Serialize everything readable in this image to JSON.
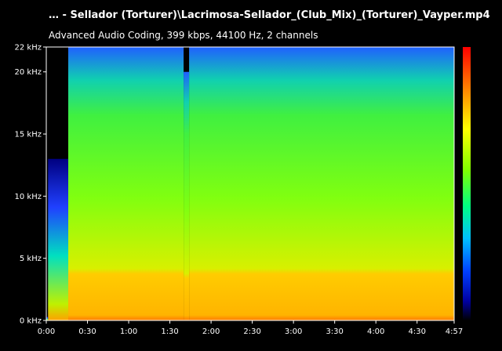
{
  "header": {
    "title": "… - Sellador (Torturer)\\Lacrimosa-Sellador_(Club_Mix)_(Torturer)_Vayper.mp4",
    "subtitle": "Advanced Audio Coding, 399 kbps, 44100 Hz, 2 channels"
  },
  "chart_data": {
    "type": "heatmap",
    "title": "… - Sellador (Torturer)\\Lacrimosa-Sellador_(Club_Mix)_(Torturer)_Vayper.mp4",
    "subtitle": "Advanced Audio Coding, 399 kbps, 44100 Hz, 2 channels",
    "xlabel": "",
    "ylabel": "",
    "x_ticks": [
      "0:00",
      "0:30",
      "1:00",
      "1:30",
      "2:00",
      "2:30",
      "3:00",
      "3:30",
      "4:00",
      "4:30",
      "4:57"
    ],
    "x_tick_seconds": [
      0,
      30,
      60,
      90,
      120,
      150,
      180,
      210,
      240,
      270,
      297
    ],
    "xlim": [
      0,
      297
    ],
    "y_ticks": [
      "0 kHz",
      "5 kHz",
      "10 kHz",
      "15 kHz",
      "20 kHz",
      "22 kHz"
    ],
    "y_tick_khz": [
      0,
      5,
      10,
      15,
      20,
      22
    ],
    "ylim": [
      0,
      22
    ],
    "colormap": [
      "#ff0000",
      "#ff8000",
      "#ffff00",
      "#80ff00",
      "#00ff80",
      "#00c0ff",
      "#0040ff",
      "#0000a0",
      "#000000"
    ],
    "segments": [
      {
        "start": 0,
        "end": 1.3,
        "cutoff_khz": 0.3
      },
      {
        "start": 1.3,
        "end": 16,
        "cutoff_khz": 13
      },
      {
        "start": 16,
        "end": 100,
        "cutoff_khz": 22
      },
      {
        "start": 100,
        "end": 104,
        "cutoff_khz": 20
      },
      {
        "start": 104,
        "end": 297,
        "cutoff_khz": 22
      }
    ],
    "grid": false,
    "legend": "colorbar-right"
  }
}
